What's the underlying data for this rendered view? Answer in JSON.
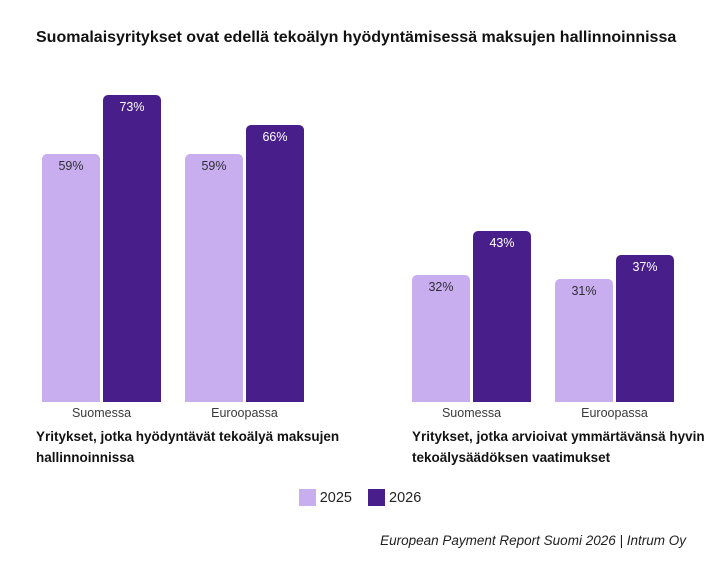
{
  "title": "Suomalaisyritykset ovat edellä tekoälyn hyödyntämisessä maksujen hallinnoinnissa",
  "colors": {
    "series_2025": "#C9AEEF",
    "series_2026": "#481F8A",
    "label_on_light": "#2E2E36",
    "label_on_dark": "#FFFFFF"
  },
  "legend": {
    "items": [
      {
        "label": "2025",
        "color_key": "series_2025"
      },
      {
        "label": "2026",
        "color_key": "series_2026"
      }
    ]
  },
  "footer": "European Payment Report Suomi 2026 | Intrum Oy",
  "chart_data": [
    {
      "type": "bar",
      "title": "Yritykset, jotka hyödyntävät tekoälyä maksujen hallinnoinnissa",
      "categories": [
        "Suomessa",
        "Euroopassa"
      ],
      "series": [
        {
          "name": "2025",
          "values": [
            59,
            59
          ]
        },
        {
          "name": "2026",
          "values": [
            73,
            66
          ]
        }
      ],
      "unit": "%",
      "ylim": [
        0,
        100
      ],
      "grid": false,
      "legend_position": "bottom-center-shared"
    },
    {
      "type": "bar",
      "title": "Yritykset, jotka arvioivat ymmärtävänsä hyvin tekoälysäädöksen vaatimukset",
      "categories": [
        "Suomessa",
        "Euroopassa"
      ],
      "series": [
        {
          "name": "2025",
          "values": [
            32,
            31
          ]
        },
        {
          "name": "2026",
          "values": [
            43,
            37
          ]
        }
      ],
      "unit": "%",
      "ylim": [
        0,
        100
      ],
      "grid": false,
      "legend_position": "bottom-center-shared"
    }
  ]
}
